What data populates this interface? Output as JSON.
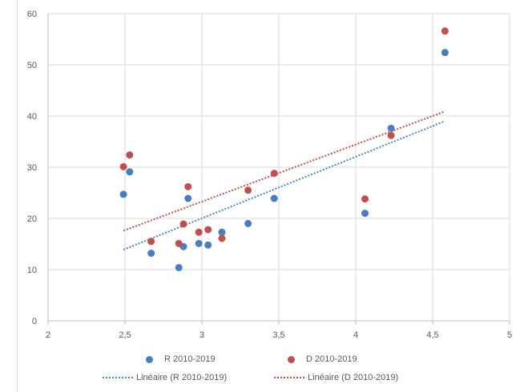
{
  "chart_data": {
    "type": "scatter",
    "xlim": [
      2,
      5
    ],
    "ylim": [
      0,
      60
    ],
    "x_ticks": [
      "2",
      "2,5",
      "3",
      "3,5",
      "4",
      "4,5",
      "5"
    ],
    "y_ticks": [
      "0",
      "10",
      "20",
      "30",
      "40",
      "50",
      "60"
    ],
    "grid": true,
    "legend_position": "bottom",
    "series": [
      {
        "name": "R 2010-2019",
        "color": "#4a7dbf",
        "points": [
          [
            2.49,
            24.7
          ],
          [
            2.53,
            29.1
          ],
          [
            2.67,
            13.2
          ],
          [
            2.85,
            10.4
          ],
          [
            2.88,
            14.5
          ],
          [
            2.91,
            23.9
          ],
          [
            2.98,
            15.1
          ],
          [
            3.04,
            14.8
          ],
          [
            3.13,
            17.3
          ],
          [
            3.3,
            19.0
          ],
          [
            3.47,
            23.9
          ],
          [
            4.06,
            21.0
          ],
          [
            4.23,
            37.6
          ],
          [
            4.58,
            52.4
          ]
        ],
        "trend": {
          "label": "Linéaire (R 2010-2019)",
          "color": "#4a86c5",
          "x0": 2.49,
          "y0": 13.9,
          "x1": 4.58,
          "y1": 39.0
        }
      },
      {
        "name": "D 2010-2019",
        "color": "#c0504d",
        "points": [
          [
            2.49,
            30.1
          ],
          [
            2.53,
            32.4
          ],
          [
            2.67,
            15.5
          ],
          [
            2.85,
            15.1
          ],
          [
            2.88,
            18.9
          ],
          [
            2.91,
            26.2
          ],
          [
            2.98,
            17.3
          ],
          [
            3.04,
            17.8
          ],
          [
            3.13,
            16.1
          ],
          [
            3.3,
            25.5
          ],
          [
            3.47,
            28.8
          ],
          [
            4.06,
            23.8
          ],
          [
            4.23,
            36.2
          ],
          [
            4.58,
            56.6
          ]
        ],
        "trend": {
          "label": "Linéaire (D 2010-2019)",
          "color": "#c0504d",
          "x0": 2.49,
          "y0": 17.6,
          "x1": 4.58,
          "y1": 40.9
        }
      }
    ]
  },
  "legend": {
    "r_label": "R 2010-2019",
    "d_label": "D 2010-2019",
    "r_trend_label": "Linéaire (R 2010-2019)",
    "d_trend_label": "Linéaire (D 2010-2019)"
  }
}
